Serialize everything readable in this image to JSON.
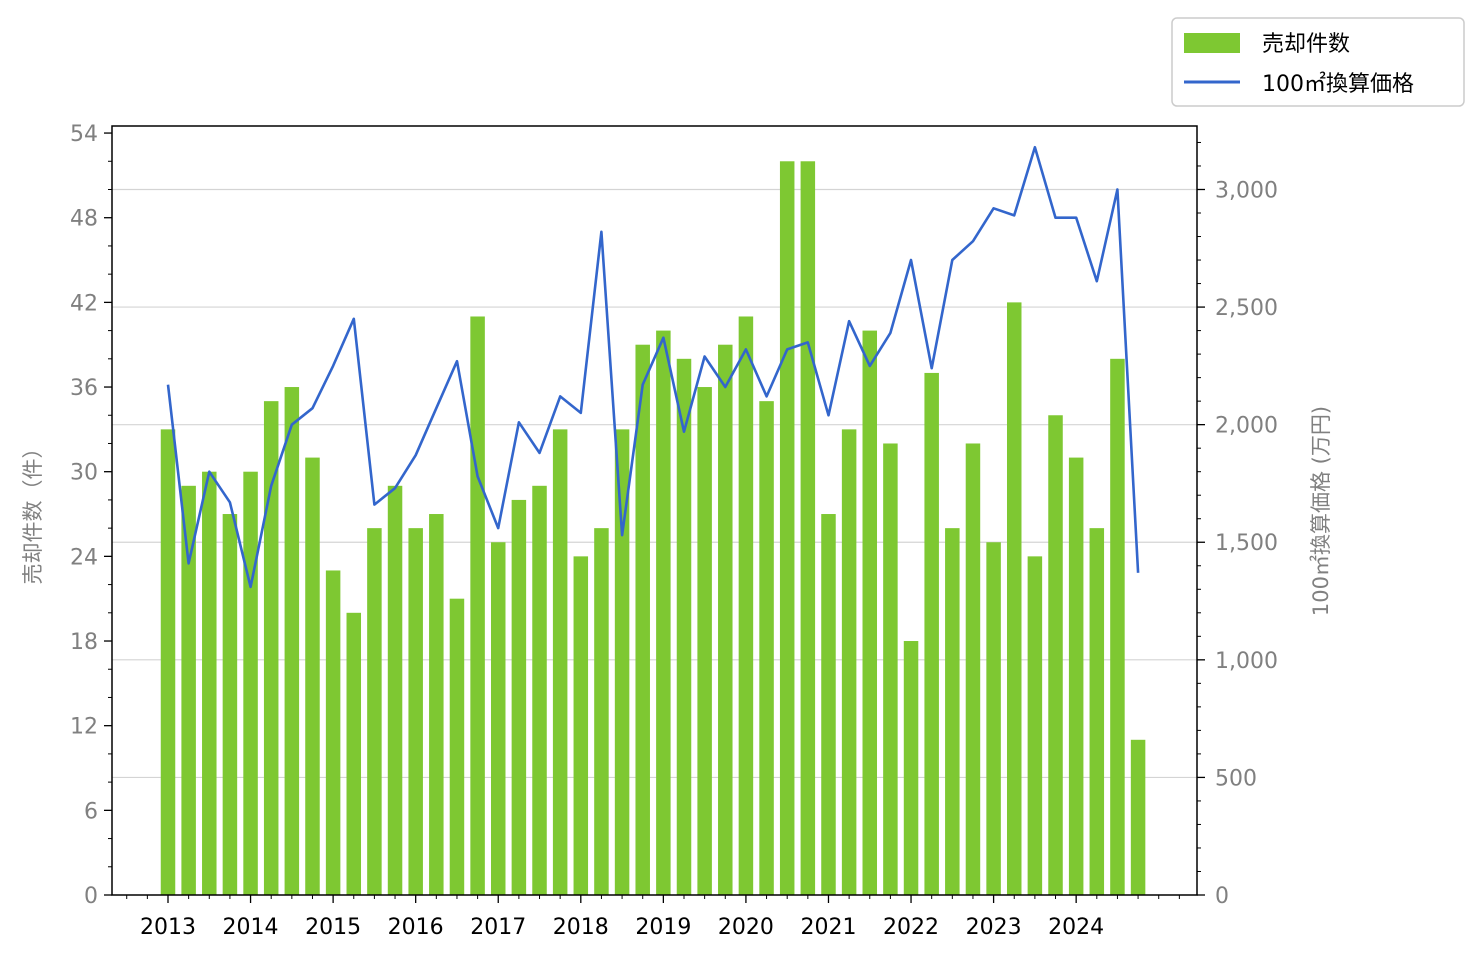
{
  "chart_data": {
    "type": "bar+line",
    "x_tick_labels": [
      "2013",
      "2014",
      "2015",
      "2016",
      "2017",
      "2018",
      "2019",
      "2020",
      "2021",
      "2022",
      "2023",
      "2024"
    ],
    "series": [
      {
        "name": "売却件数",
        "type": "bar",
        "axis": "left",
        "color": "#7ec832",
        "values": [
          33,
          29,
          30,
          27,
          30,
          35,
          36,
          31,
          23,
          20,
          26,
          29,
          26,
          27,
          21,
          41,
          25,
          28,
          29,
          33,
          24,
          26,
          33,
          39,
          40,
          38,
          36,
          39,
          41,
          35,
          52,
          52,
          27,
          33,
          40,
          32,
          18,
          37,
          26,
          32,
          25,
          42,
          24,
          34,
          31,
          26,
          38,
          11
        ]
      },
      {
        "name": "100㎡換算価格",
        "type": "line",
        "axis": "right",
        "color": "#3366cc",
        "values": [
          2170,
          1410,
          1800,
          1670,
          1310,
          1740,
          2000,
          2070,
          2250,
          2450,
          1660,
          1730,
          1870,
          2070,
          2270,
          1780,
          1560,
          2010,
          1880,
          2120,
          2050,
          2820,
          1530,
          2170,
          2370,
          1970,
          2290,
          2160,
          2320,
          2120,
          2320,
          2350,
          2040,
          2440,
          2250,
          2390,
          2700,
          2240,
          2700,
          2780,
          2920,
          2890,
          3180,
          2880,
          2880,
          2610,
          3000,
          1370
        ]
      }
    ],
    "left_axis": {
      "title": "売却件数（件）",
      "ylim": [
        0,
        54.5
      ],
      "ticks": [
        "0",
        "6",
        "12",
        "18",
        "24",
        "30",
        "36",
        "42",
        "48",
        "54"
      ]
    },
    "right_axis": {
      "title": "100㎡換算価格 (万円)",
      "ylim": [
        0,
        3270
      ],
      "ticks": [
        "0",
        "500",
        "1,000",
        "1,500",
        "2,000",
        "2,500",
        "3,000"
      ]
    },
    "grid": "horizontal, right axis",
    "legend_position": "top-right, outside plot"
  }
}
